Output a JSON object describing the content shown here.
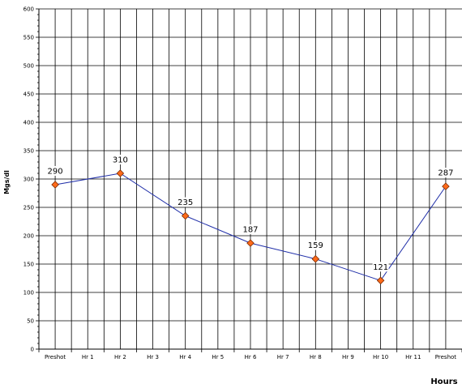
{
  "chart_data": {
    "type": "line",
    "xlabel": "Hours",
    "ylabel": "Mgs/dl",
    "ylim": [
      0,
      600
    ],
    "y_major_step": 50,
    "y_minor_step": 10,
    "grid": true,
    "categories": [
      "Preshot",
      "Hr 1",
      "Hr 2",
      "Hr 3",
      "Hr 4",
      "Hr 5",
      "Hr 6",
      "Hr 7",
      "Hr 8",
      "Hr 9",
      "Hr 10",
      "Hr 11",
      "Preshot"
    ],
    "series": [
      {
        "values": [
          290,
          null,
          310,
          null,
          235,
          null,
          187,
          null,
          159,
          null,
          121,
          null,
          287
        ],
        "line_color": "#1f2ea8",
        "marker_color": "#ff6a1a",
        "marker_edge": "#7a2a00"
      }
    ]
  }
}
